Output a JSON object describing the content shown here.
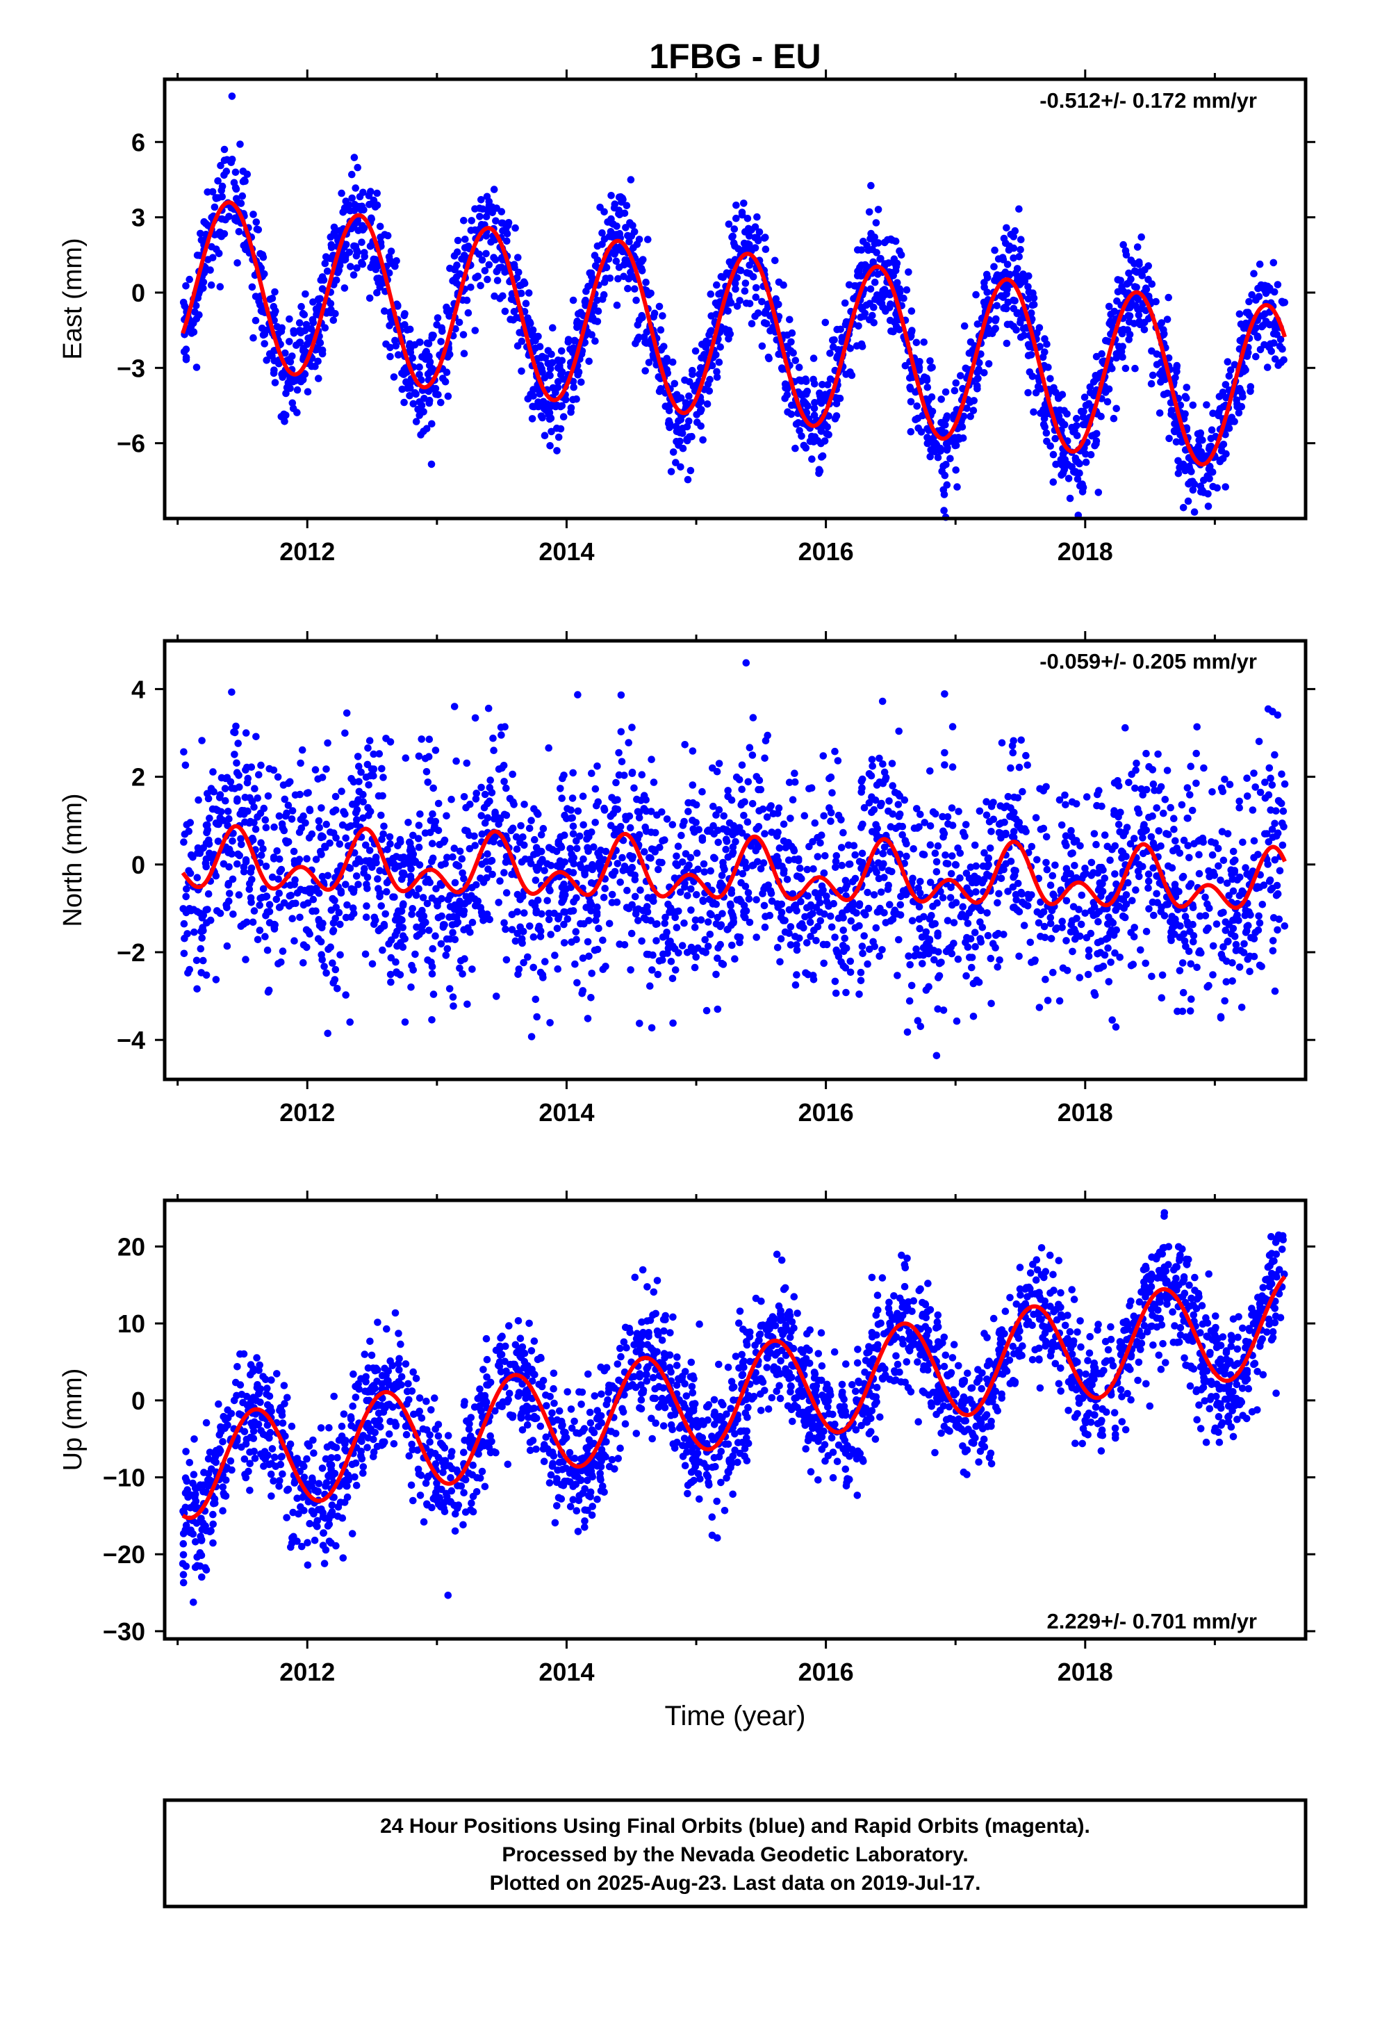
{
  "chart_data": [
    {
      "type": "scatter",
      "title": "1FBG - EU",
      "ylabel": "East (mm)",
      "xlabel": "",
      "annotation": "-0.512+/- 0.172 mm/yr",
      "xlim": [
        2010.9,
        2019.7
      ],
      "ylim": [
        -9,
        8.5
      ],
      "x_ticks": [
        2012,
        2014,
        2016,
        2018
      ],
      "y_ticks": [
        6,
        3,
        0,
        -3,
        -6
      ],
      "y_tick_labels": [
        "6",
        "3",
        "0",
        "−3",
        "−6"
      ],
      "grid": false,
      "series": [
        {
          "kind": "points",
          "color": "#0000ff",
          "n_points": 2650,
          "x_start": 2011.04,
          "x_end": 2019.54,
          "seasonal_amplitude_mm": 3.3,
          "seasonal_phase_peak": 0.4,
          "residual_scatter_mm": 1.1
        },
        {
          "kind": "line",
          "color": "#ff0000",
          "intercept_mm_at_2011": 0.5,
          "trend_mm_per_yr": -0.512,
          "annual_amplitude_mm": 3.3,
          "annual_peak_fraction": 0.4
        }
      ]
    },
    {
      "type": "scatter",
      "title": "",
      "ylabel": "North (mm)",
      "xlabel": "",
      "annotation": "-0.059+/- 0.205 mm/yr",
      "xlim": [
        2010.9,
        2019.7
      ],
      "ylim": [
        -4.9,
        5.1
      ],
      "x_ticks": [
        2012,
        2014,
        2016,
        2018
      ],
      "y_ticks": [
        4,
        2,
        0,
        -2,
        -4
      ],
      "y_tick_labels": [
        "4",
        "2",
        "0",
        "−2",
        "−4"
      ],
      "grid": false,
      "series": [
        {
          "kind": "points",
          "color": "#0000ff",
          "n_points": 2650,
          "x_start": 2011.04,
          "x_end": 2019.54,
          "residual_scatter_mm": 1.25
        },
        {
          "kind": "line",
          "color": "#ff0000",
          "intercept_mm_at_2011": 0.0,
          "trend_mm_per_yr": -0.059,
          "annual_amplitude_mm": 0.45,
          "annual_peak_fraction": 0.45,
          "semiannual_amplitude_mm": 0.45,
          "semiannual_peak_fraction": 0.45
        }
      ]
    },
    {
      "type": "scatter",
      "title": "",
      "ylabel": "Up (mm)",
      "xlabel": "Time (year)",
      "annotation": "2.229+/- 0.701 mm/yr",
      "xlim": [
        2010.9,
        2019.7
      ],
      "ylim": [
        -31,
        26
      ],
      "x_ticks": [
        2012,
        2014,
        2016,
        2018
      ],
      "y_ticks": [
        20,
        10,
        0,
        -10,
        -20,
        -30
      ],
      "y_tick_labels": [
        "20",
        "10",
        "0",
        "−10",
        "−20",
        "−30"
      ],
      "grid": false,
      "series": [
        {
          "kind": "points",
          "color": "#0000ff",
          "n_points": 2650,
          "x_start": 2011.04,
          "x_end": 2019.54,
          "residual_scatter_mm": 4.3
        },
        {
          "kind": "line",
          "color": "#ff0000",
          "intercept_mm_at_2011": -9.0,
          "trend_mm_per_yr": 2.229,
          "annual_amplitude_mm": 6.5,
          "annual_peak_fraction": 0.6
        }
      ]
    }
  ],
  "caption": {
    "line1": "24 Hour Positions Using Final Orbits (blue) and Rapid Orbits (magenta).",
    "line2": "Processed by the Nevada Geodetic Laboratory.",
    "line3": "Plotted on 2025-Aug-23. Last data on 2019-Jul-17."
  }
}
